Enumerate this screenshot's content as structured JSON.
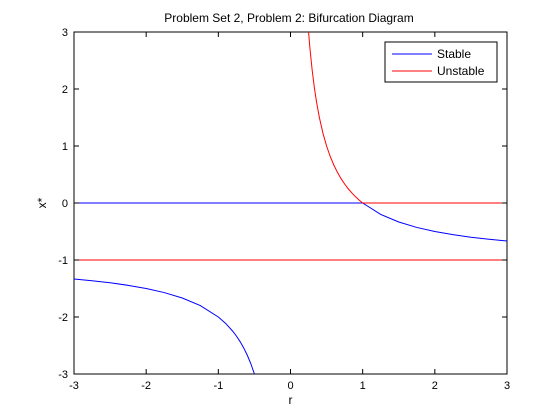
{
  "chart_data": {
    "type": "line",
    "title": "Problem Set 2, Problem 2: Bifurcation Diagram",
    "xlabel": "r",
    "ylabel": "x*",
    "xlim": [
      -3,
      3
    ],
    "ylim": [
      -3,
      3
    ],
    "xticks": [
      "-3",
      "-2",
      "-1",
      "0",
      "1",
      "2",
      "3"
    ],
    "yticks": [
      "-3",
      "-2",
      "-1",
      "0",
      "1",
      "2",
      "3"
    ],
    "grid": false,
    "legend": {
      "position": "top-right",
      "entries": [
        {
          "name": "Stable",
          "color": "#0000ff"
        },
        {
          "name": "Unstable",
          "color": "#ff0000"
        }
      ]
    },
    "series": [
      {
        "legend": "Stable",
        "color": "#0000ff",
        "segments": [
          {
            "x": [
              -3,
              1
            ],
            "y": [
              0,
              0
            ]
          },
          {
            "x": [
              1,
              1.25,
              1.5,
              1.75,
              2,
              2.25,
              2.5,
              2.75,
              3
            ],
            "y": [
              0,
              -0.2,
              -0.3333,
              -0.4286,
              -0.5,
              -0.5556,
              -0.6,
              -0.6364,
              -0.6667
            ]
          },
          {
            "x": [
              -3,
              -2.75,
              -2.5,
              -2.25,
              -2,
              -1.75,
              -1.5,
              -1.25,
              -1,
              -0.9,
              -0.8,
              -0.75,
              -0.7,
              -0.65,
              -0.6,
              -0.55,
              -0.5
            ],
            "y": [
              -1.3333,
              -1.3636,
              -1.4,
              -1.4444,
              -1.5,
              -1.5714,
              -1.6667,
              -1.8,
              -2,
              -2.1111,
              -2.25,
              -2.3333,
              -2.4286,
              -2.5385,
              -2.6667,
              -2.8182,
              -3
            ]
          }
        ]
      },
      {
        "legend": "Unstable",
        "color": "#ff0000",
        "segments": [
          {
            "x": [
              1,
              3
            ],
            "y": [
              0,
              0
            ]
          },
          {
            "x": [
              -3,
              3
            ],
            "y": [
              -1,
              -1
            ]
          },
          {
            "x": [
              0.25,
              0.27,
              0.3,
              0.33,
              0.36,
              0.4,
              0.45,
              0.5,
              0.55,
              0.6,
              0.65,
              0.7,
              0.75,
              0.8,
              0.85,
              0.9,
              0.95,
              1
            ],
            "y": [
              3,
              2.7037,
              2.3333,
              2.0303,
              1.7778,
              1.5,
              1.2222,
              1,
              0.8182,
              0.6667,
              0.5385,
              0.4286,
              0.3333,
              0.25,
              0.1765,
              0.1111,
              0.0526,
              0
            ]
          }
        ]
      }
    ]
  }
}
